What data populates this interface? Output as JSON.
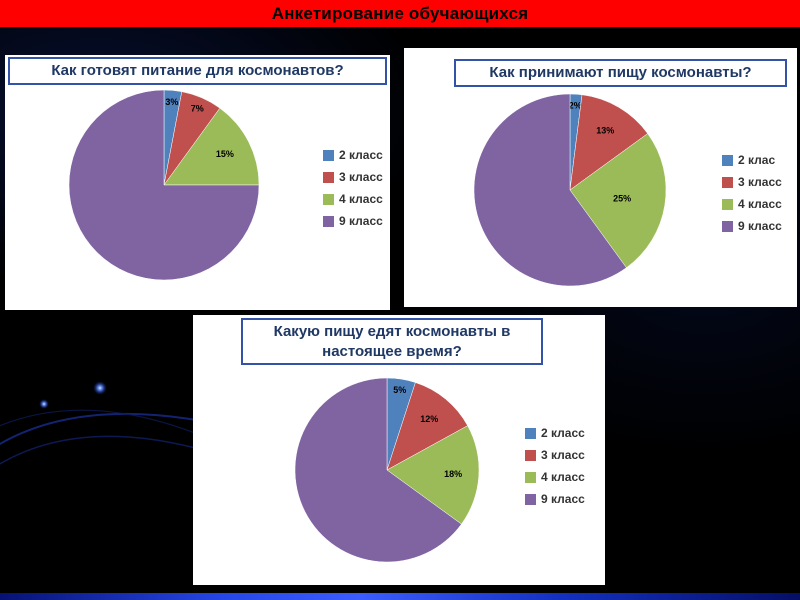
{
  "slide": {
    "title": "Анкетирование обучающихся"
  },
  "series_colors": [
    "#4f81bd",
    "#c0504d",
    "#9bbb59",
    "#8064a2"
  ],
  "colors": {
    "top_bar_red": "#fe0000",
    "bottom_bar_blue": "#2646e8",
    "panel_border_blue": "#3353a8",
    "panel_title_navy": "#1f3864",
    "panel_bg": "#ffffff",
    "slide_bg": "#000000"
  },
  "chart_data": [
    {
      "type": "pie",
      "title": "Как готовят питание для космонавтов?",
      "categories": [
        "2 класс",
        "3 класс",
        "4 класс",
        "9 класс"
      ],
      "values": [
        3,
        7,
        15,
        75
      ],
      "data_labels": [
        "3%",
        "7%",
        "15%",
        ""
      ],
      "legend": {
        "position": "right",
        "entries": [
          "2 класс",
          "3 класс",
          "4 класс",
          "9 класс"
        ]
      }
    },
    {
      "type": "pie",
      "title": "Как принимают пищу космонавты?",
      "categories": [
        "2 клас",
        "3 класс",
        "4 класс",
        "9 класс"
      ],
      "values": [
        2,
        13,
        25,
        60
      ],
      "data_labels": [
        "2%",
        "13%",
        "25%",
        ""
      ],
      "legend": {
        "position": "right",
        "entries": [
          "2 клас",
          "3 класс",
          "4 класс",
          "9 класс"
        ]
      }
    },
    {
      "type": "pie",
      "title": "Какую пищу едят космонавты в настоящее время?",
      "categories": [
        "2 класс",
        "3 класс",
        "4 класс",
        "9 класс"
      ],
      "values": [
        5,
        12,
        18,
        65
      ],
      "data_labels": [
        "5%",
        "12%",
        "18%",
        ""
      ],
      "legend": {
        "position": "right",
        "entries": [
          "2 класс",
          "3 класс",
          "4 класс",
          "9 класс"
        ]
      }
    }
  ]
}
